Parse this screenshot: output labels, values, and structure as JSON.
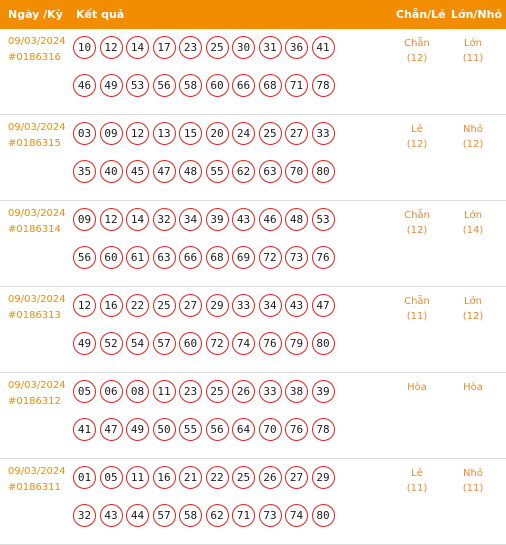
{
  "header": {
    "date_label": "Ngày /Kỳ",
    "result_label": "Kết quả",
    "chanle_label": "Chẵn/Lẻ",
    "lonnho_label": "Lớn/Nhỏ"
  },
  "rows": [
    {
      "date": "09/03/2024",
      "id": "#0186316",
      "balls": [
        "10",
        "12",
        "14",
        "17",
        "23",
        "25",
        "30",
        "31",
        "36",
        "41",
        "46",
        "49",
        "53",
        "56",
        "58",
        "60",
        "66",
        "68",
        "71",
        "78"
      ],
      "chanle": "Chẵn",
      "chanle_count": "(12)",
      "lonnho": "Lớn",
      "lonnho_count": "(11)"
    },
    {
      "date": "09/03/2024",
      "id": "#0186315",
      "balls": [
        "03",
        "09",
        "12",
        "13",
        "15",
        "20",
        "24",
        "25",
        "27",
        "33",
        "35",
        "40",
        "45",
        "47",
        "48",
        "55",
        "62",
        "63",
        "70",
        "80"
      ],
      "chanle": "Lẻ",
      "chanle_count": "(12)",
      "lonnho": "Nhỏ",
      "lonnho_count": "(12)"
    },
    {
      "date": "09/03/2024",
      "id": "#0186314",
      "balls": [
        "09",
        "12",
        "14",
        "32",
        "34",
        "39",
        "43",
        "46",
        "48",
        "53",
        "56",
        "60",
        "61",
        "63",
        "66",
        "68",
        "69",
        "72",
        "73",
        "76"
      ],
      "chanle": "Chẵn",
      "chanle_count": "(12)",
      "lonnho": "Lớn",
      "lonnho_count": "(14)"
    },
    {
      "date": "09/03/2024",
      "id": "#0186313",
      "balls": [
        "12",
        "16",
        "22",
        "25",
        "27",
        "29",
        "33",
        "34",
        "43",
        "47",
        "49",
        "52",
        "54",
        "57",
        "60",
        "72",
        "74",
        "76",
        "79",
        "80"
      ],
      "chanle": "Chẵn",
      "chanle_count": "(11)",
      "lonnho": "Lớn",
      "lonnho_count": "(12)"
    },
    {
      "date": "09/03/2024",
      "id": "#0186312",
      "balls": [
        "05",
        "06",
        "08",
        "11",
        "23",
        "25",
        "26",
        "33",
        "38",
        "39",
        "41",
        "47",
        "49",
        "50",
        "55",
        "56",
        "64",
        "70",
        "76",
        "78"
      ],
      "chanle": "Hòa",
      "chanle_count": "",
      "lonnho": "Hòa",
      "lonnho_count": ""
    },
    {
      "date": "09/03/2024",
      "id": "#0186311",
      "balls": [
        "01",
        "05",
        "11",
        "16",
        "21",
        "22",
        "25",
        "26",
        "27",
        "29",
        "32",
        "43",
        "44",
        "57",
        "58",
        "62",
        "71",
        "73",
        "74",
        "80"
      ],
      "chanle": "Lẻ",
      "chanle_count": "(11)",
      "lonnho": "Nhỏ",
      "lonnho_count": "(11)"
    }
  ]
}
